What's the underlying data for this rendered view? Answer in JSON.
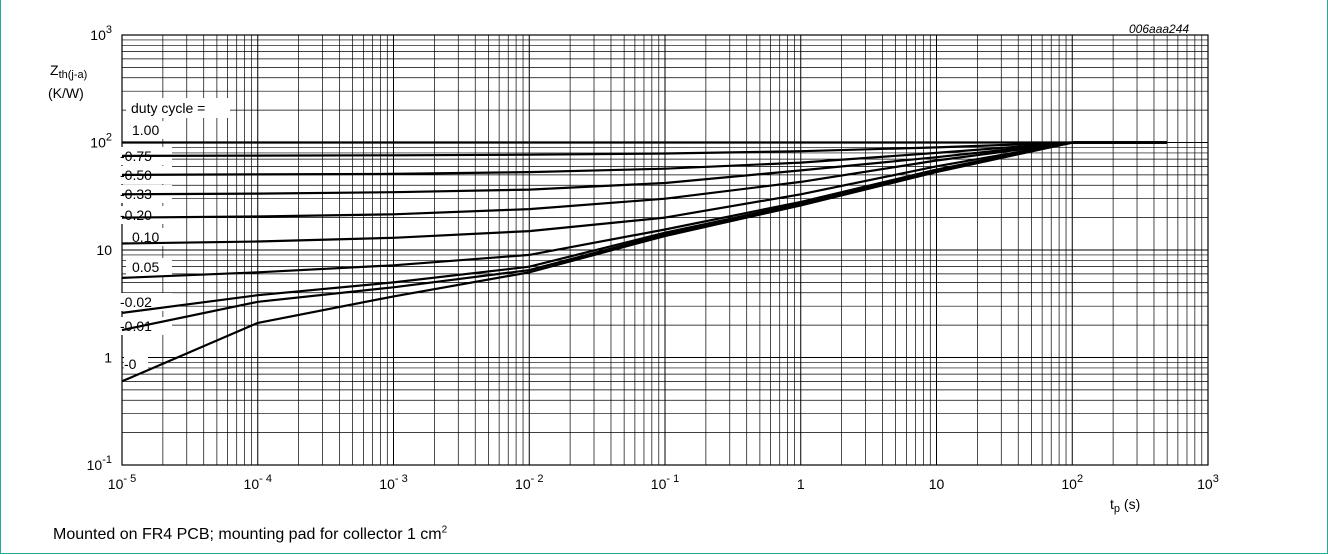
{
  "doc_code": "006aaa244",
  "caption": {
    "text": "Mounted on FR4 PCB; mounting pad for collector 1 cm",
    "superscript": "2"
  },
  "chart_data": {
    "type": "line",
    "x_scale": "log",
    "y_scale": "log",
    "xlim": [
      1e-05,
      1000
    ],
    "ylim": [
      0.1,
      1000
    ],
    "grid": true,
    "ylabel": {
      "symbol": "Z",
      "subscript": "th(j-a)",
      "unit": "(K/W)"
    },
    "xlabel": {
      "symbol": "t",
      "subscript": "p",
      "unit": "(s)"
    },
    "x_ticks": [
      {
        "base": "10",
        "exp": "- 5"
      },
      {
        "base": "10",
        "exp": "- 4"
      },
      {
        "base": "10",
        "exp": "- 3"
      },
      {
        "base": "10",
        "exp": "- 2"
      },
      {
        "base": "10",
        "exp": "- 1"
      },
      {
        "base": "1",
        "exp": ""
      },
      {
        "base": "10",
        "exp": ""
      },
      {
        "base": "10",
        "exp": "2"
      },
      {
        "base": "10",
        "exp": "3"
      }
    ],
    "y_ticks": [
      {
        "base": "10",
        "exp": "-1"
      },
      {
        "base": "1",
        "exp": ""
      },
      {
        "base": "10",
        "exp": ""
      },
      {
        "base": "10",
        "exp": "2"
      },
      {
        "base": "10",
        "exp": "3"
      }
    ],
    "legend_title": "duty cycle =",
    "series": [
      {
        "name": "1.00",
        "x": [
          1e-05,
          0.0001,
          0.001,
          0.01,
          0.1,
          1,
          10,
          100,
          500
        ],
        "y": [
          100,
          100,
          100,
          100,
          100,
          100,
          100,
          100,
          100
        ]
      },
      {
        "name": "0.75",
        "x": [
          1e-05,
          0.0001,
          0.001,
          0.01,
          0.1,
          1,
          10,
          100,
          500
        ],
        "y": [
          75,
          75.5,
          76,
          77,
          79,
          83,
          90,
          100,
          100
        ]
      },
      {
        "name": "0.50",
        "x": [
          1e-05,
          0.0001,
          0.001,
          0.01,
          0.1,
          1,
          10,
          100,
          500
        ],
        "y": [
          50,
          50.5,
          51,
          53,
          57,
          65,
          80,
          100,
          100
        ]
      },
      {
        "name": "0.33",
        "x": [
          1e-05,
          0.0001,
          0.001,
          0.01,
          0.1,
          1,
          10,
          100,
          500
        ],
        "y": [
          33,
          33.5,
          34.5,
          36.5,
          42,
          55,
          73,
          100,
          100
        ]
      },
      {
        "name": "0.20",
        "x": [
          1e-05,
          0.0001,
          0.001,
          0.01,
          0.1,
          1,
          10,
          100,
          500
        ],
        "y": [
          20,
          20.5,
          21.5,
          24,
          30,
          43,
          68,
          100,
          100
        ]
      },
      {
        "name": "0.10",
        "x": [
          1e-05,
          0.0001,
          0.001,
          0.01,
          0.1,
          1,
          10,
          100,
          500
        ],
        "y": [
          11.5,
          12,
          13,
          15,
          20,
          33,
          60,
          100,
          100
        ]
      },
      {
        "name": "0.05",
        "x": [
          1e-05,
          0.0001,
          0.001,
          0.01,
          0.1,
          1,
          10,
          100,
          500
        ],
        "y": [
          5.5,
          6.2,
          7.2,
          9,
          15.5,
          28,
          56,
          100,
          100
        ]
      },
      {
        "name": "0.02",
        "x": [
          1e-05,
          0.0001,
          0.001,
          0.01,
          0.1,
          1,
          10,
          100,
          500
        ],
        "y": [
          2.6,
          3.8,
          5,
          7,
          14.5,
          27,
          55,
          100,
          100
        ]
      },
      {
        "name": "0.01",
        "x": [
          1e-05,
          0.0001,
          0.001,
          0.01,
          0.1,
          1,
          10,
          100,
          500
        ],
        "y": [
          1.8,
          3.3,
          4.5,
          6.5,
          14,
          26.5,
          54,
          100,
          100
        ]
      },
      {
        "name": "0",
        "x": [
          1e-05,
          0.0001,
          0.001,
          0.01,
          0.1,
          1,
          10,
          100,
          500
        ],
        "y": [
          0.6,
          2.1,
          3.7,
          6.2,
          13.5,
          26,
          53,
          100,
          100
        ]
      }
    ]
  }
}
